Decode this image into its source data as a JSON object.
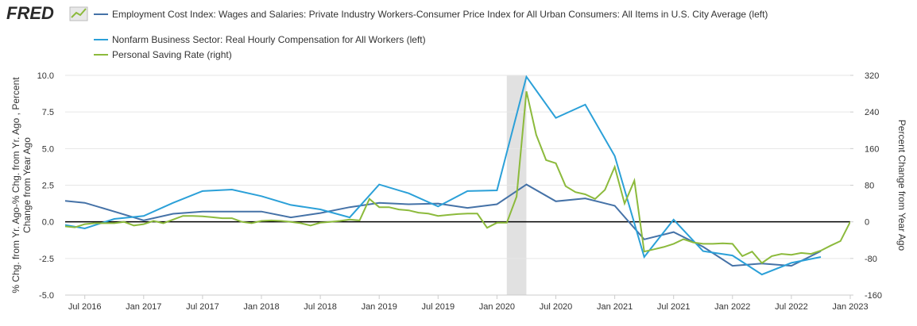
{
  "chart_data": {
    "type": "line",
    "brand": "FRED",
    "xlim": [
      "2016-05",
      "2023-01"
    ],
    "xticks": [
      {
        "value": "2016-07",
        "label": "Jul 2016"
      },
      {
        "value": "2017-01",
        "label": "Jan 2017"
      },
      {
        "value": "2017-07",
        "label": "Jul 2017"
      },
      {
        "value": "2018-01",
        "label": "Jan 2018"
      },
      {
        "value": "2018-07",
        "label": "Jul 2018"
      },
      {
        "value": "2019-01",
        "label": "Jan 2019"
      },
      {
        "value": "2019-07",
        "label": "Jul 2019"
      },
      {
        "value": "2020-01",
        "label": "Jan 2020"
      },
      {
        "value": "2020-07",
        "label": "Jul 2020"
      },
      {
        "value": "2021-01",
        "label": "Jan 2021"
      },
      {
        "value": "2021-07",
        "label": "Jul 2021"
      },
      {
        "value": "2022-01",
        "label": "Jan 2022"
      },
      {
        "value": "2022-07",
        "label": "Jul 2022"
      },
      {
        "value": "2023-01",
        "label": "Jan 2023"
      }
    ],
    "ylim": [
      -5,
      10
    ],
    "yticks": [
      {
        "value": 10,
        "label": "10.0"
      },
      7.5,
      {
        "value": 5,
        "label": "5.0"
      },
      2.5,
      {
        "value": 0,
        "label": "0.0"
      },
      -2.5,
      {
        "value": -5,
        "label": "-5.0"
      }
    ],
    "y2lim": [
      -160,
      320
    ],
    "y2ticks": [
      320,
      240,
      160,
      80,
      0,
      -80,
      -160
    ],
    "ylabel_lines": [
      "% Chg. from Yr. Ago-% Chg. from Yr. Ago , Percent",
      "Change from Year Ago"
    ],
    "y2label": "Percent Change from Year Ago",
    "grid": true,
    "recessions": [
      {
        "start": "2020-02",
        "end": "2020-04"
      }
    ],
    "series": [
      {
        "name": "Employment Cost Index: Wages and Salaries: Private Industry Workers-Consumer Price Index for All Urban Consumers: All Items in U.S. City Average (left)",
        "color": "#4572a7",
        "x": [
          "2016-04",
          "2016-07",
          "2016-10",
          "2017-01",
          "2017-04",
          "2017-07",
          "2017-10",
          "2018-01",
          "2018-04",
          "2018-07",
          "2018-10",
          "2019-01",
          "2019-04",
          "2019-07",
          "2019-10",
          "2020-01",
          "2020-04",
          "2020-07",
          "2020-10",
          "2021-01",
          "2021-04",
          "2021-07",
          "2021-10",
          "2022-01",
          "2022-04",
          "2022-07",
          "2022-10"
        ],
        "values": [
          1.5,
          1.3,
          0.7,
          0.1,
          0.55,
          0.7,
          0.7,
          0.7,
          0.3,
          0.6,
          1.0,
          1.3,
          1.2,
          1.25,
          0.95,
          1.2,
          2.55,
          1.4,
          1.6,
          1.1,
          -1.2,
          -0.7,
          -1.7,
          -3.0,
          -2.85,
          -3.0,
          -2.0
        ]
      },
      {
        "name": "Nonfarm Business Sector: Real Hourly Compensation for All Workers (left)",
        "color": "#2ba0d8",
        "x": [
          "2016-04",
          "2016-07",
          "2016-10",
          "2017-01",
          "2017-04",
          "2017-07",
          "2017-10",
          "2018-01",
          "2018-04",
          "2018-07",
          "2018-10",
          "2019-01",
          "2019-04",
          "2019-07",
          "2019-10",
          "2020-01",
          "2020-04",
          "2020-07",
          "2020-10",
          "2021-01",
          "2021-04",
          "2021-07",
          "2021-10",
          "2022-01",
          "2022-04",
          "2022-07",
          "2022-10"
        ],
        "values": [
          -0.1,
          -0.45,
          0.2,
          0.4,
          1.3,
          2.1,
          2.2,
          1.75,
          1.15,
          0.85,
          0.3,
          2.55,
          1.95,
          1.05,
          2.1,
          2.15,
          9.9,
          7.1,
          8.0,
          4.5,
          -2.4,
          0.15,
          -2.0,
          -2.3,
          -3.6,
          -2.8,
          -2.4
        ]
      },
      {
        "name": "Personal Saving Rate (right)",
        "color": "#8cba3c",
        "axis": "y2",
        "x": [
          "2016-05",
          "2016-06",
          "2016-07",
          "2016-08",
          "2016-09",
          "2016-10",
          "2016-11",
          "2016-12",
          "2017-01",
          "2017-02",
          "2017-03",
          "2017-04",
          "2017-05",
          "2017-06",
          "2017-07",
          "2017-08",
          "2017-09",
          "2017-10",
          "2017-11",
          "2017-12",
          "2018-01",
          "2018-02",
          "2018-03",
          "2018-04",
          "2018-05",
          "2018-06",
          "2018-07",
          "2018-08",
          "2018-09",
          "2018-10",
          "2018-11",
          "2018-12",
          "2019-01",
          "2019-02",
          "2019-03",
          "2019-04",
          "2019-05",
          "2019-06",
          "2019-07",
          "2019-08",
          "2019-09",
          "2019-10",
          "2019-11",
          "2019-12",
          "2020-01",
          "2020-02",
          "2020-03",
          "2020-04",
          "2020-05",
          "2020-06",
          "2020-07",
          "2020-08",
          "2020-09",
          "2020-10",
          "2020-11",
          "2020-12",
          "2021-01",
          "2021-02",
          "2021-03",
          "2021-04",
          "2021-05",
          "2021-06",
          "2021-07",
          "2021-08",
          "2021-09",
          "2021-10",
          "2021-11",
          "2021-12",
          "2022-01",
          "2022-02",
          "2022-03",
          "2022-04",
          "2022-05",
          "2022-06",
          "2022-07",
          "2022-08",
          "2022-09",
          "2022-10",
          "2022-11",
          "2022-12",
          "2023-01"
        ],
        "values": [
          -10,
          -12,
          -5,
          -3,
          -3,
          -3,
          0,
          -8,
          -5,
          2,
          -3,
          5,
          13,
          13,
          12,
          10,
          8,
          8,
          0,
          -3,
          2,
          3,
          2,
          0,
          -3,
          -8,
          -2,
          0,
          2,
          5,
          3,
          50,
          32,
          32,
          27,
          25,
          20,
          18,
          13,
          15,
          17,
          18,
          18,
          -13,
          -2,
          -2,
          55,
          285,
          190,
          135,
          128,
          78,
          65,
          60,
          50,
          70,
          120,
          40,
          90,
          -65,
          -60,
          -55,
          -48,
          -38,
          -45,
          -48,
          -48,
          -47,
          -48,
          -75,
          -65,
          -90,
          -75,
          -70,
          -72,
          -68,
          -70,
          -63,
          -52,
          -42,
          0
        ]
      }
    ]
  }
}
